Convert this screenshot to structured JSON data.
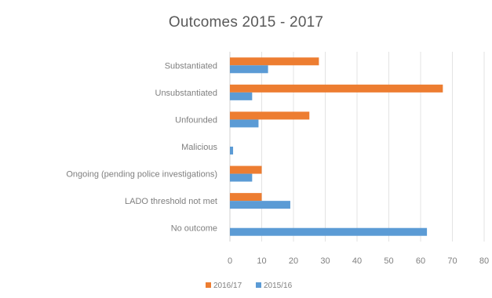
{
  "chart_data": {
    "type": "bar",
    "orientation": "horizontal",
    "title": "Outcomes 2015 - 2017",
    "xlabel": "",
    "ylabel": "",
    "xlim": [
      0,
      80
    ],
    "x_ticks": [
      "0",
      "10",
      "20",
      "30",
      "40",
      "50",
      "60",
      "70",
      "80"
    ],
    "categories": [
      "Substantiated",
      "Unsubstantiated",
      "Unfounded",
      "Malicious",
      "Ongoing (pending police investigations)",
      "LADO threshold not met",
      "No outcome"
    ],
    "series": [
      {
        "name": "2016/17",
        "color": "#ED7D31",
        "values": [
          28,
          67,
          25,
          0,
          10,
          10,
          0
        ]
      },
      {
        "name": "2015/16",
        "color": "#5B9BD5",
        "values": [
          12,
          7,
          9,
          1,
          7,
          19,
          62
        ]
      }
    ],
    "grid": "vertical",
    "legend_position": "bottom"
  }
}
